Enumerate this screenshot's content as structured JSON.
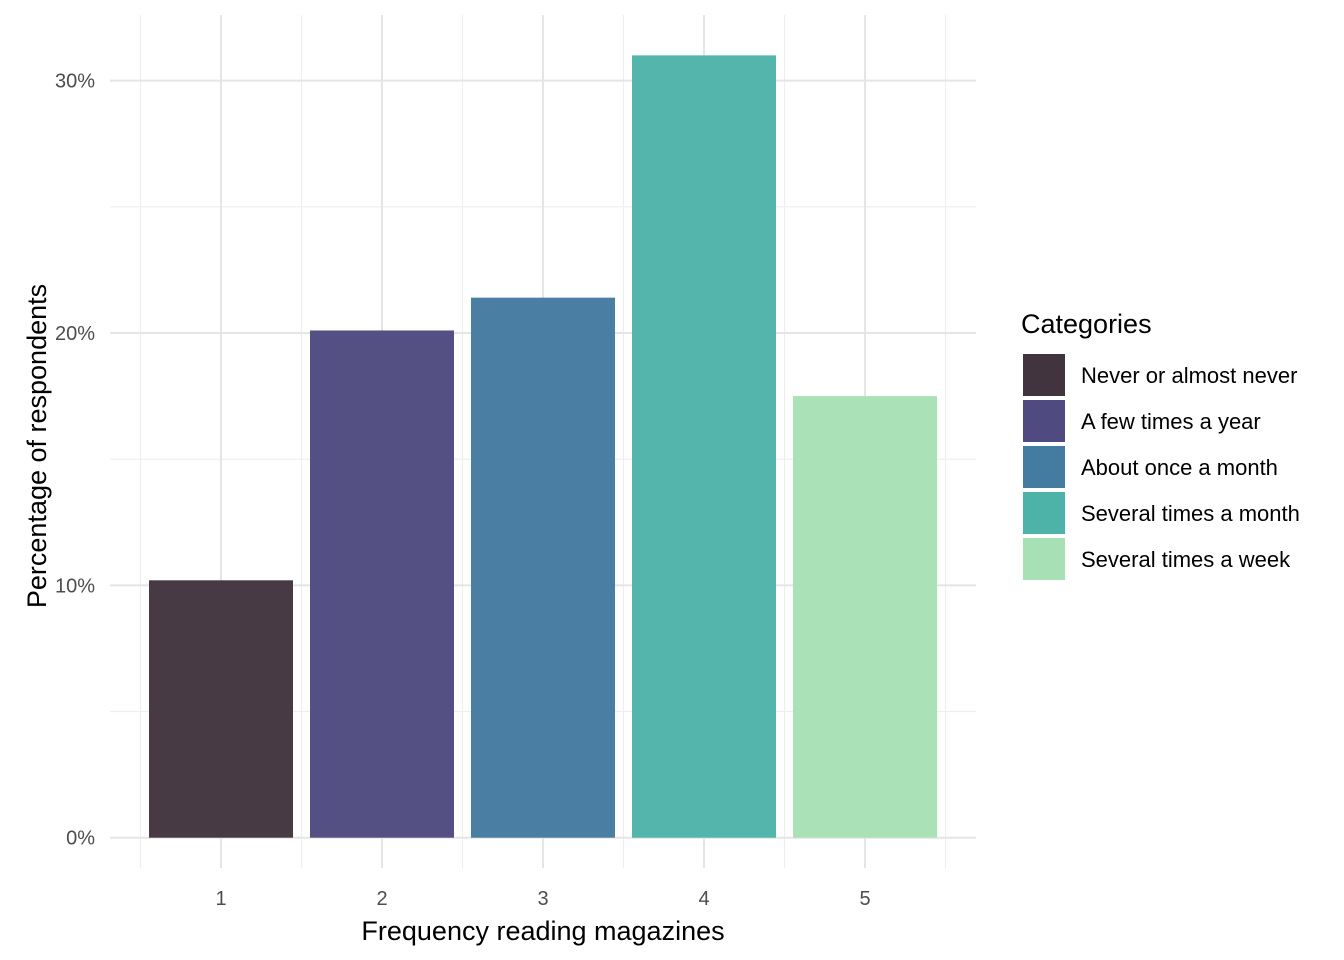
{
  "chart_data": {
    "type": "bar",
    "categories": [
      "1",
      "2",
      "3",
      "4",
      "5"
    ],
    "values": [
      10.2,
      20.1,
      21.4,
      31.0,
      17.5
    ],
    "colors": [
      "#41343f",
      "#4f4a80",
      "#447ba0",
      "#4db3a9",
      "#a8e0b5"
    ],
    "xlabel": "Frequency reading magazines",
    "ylabel": "Percentage of respondents",
    "ylim": [
      -1.2,
      32.6
    ],
    "y_ticks": [
      0,
      10,
      20,
      30
    ],
    "y_tick_labels": [
      "0%",
      "10%",
      "20%",
      "30%"
    ],
    "grid": true,
    "legend": {
      "title": "Categories",
      "placement": "right",
      "items": [
        {
          "label": "Never or almost never",
          "color": "#41343f"
        },
        {
          "label": "A few times a year",
          "color": "#4f4a80"
        },
        {
          "label": "About once a month",
          "color": "#447ba0"
        },
        {
          "label": "Several times a month",
          "color": "#4db3a9"
        },
        {
          "label": "Several times a week",
          "color": "#a8e0b5"
        }
      ]
    }
  }
}
